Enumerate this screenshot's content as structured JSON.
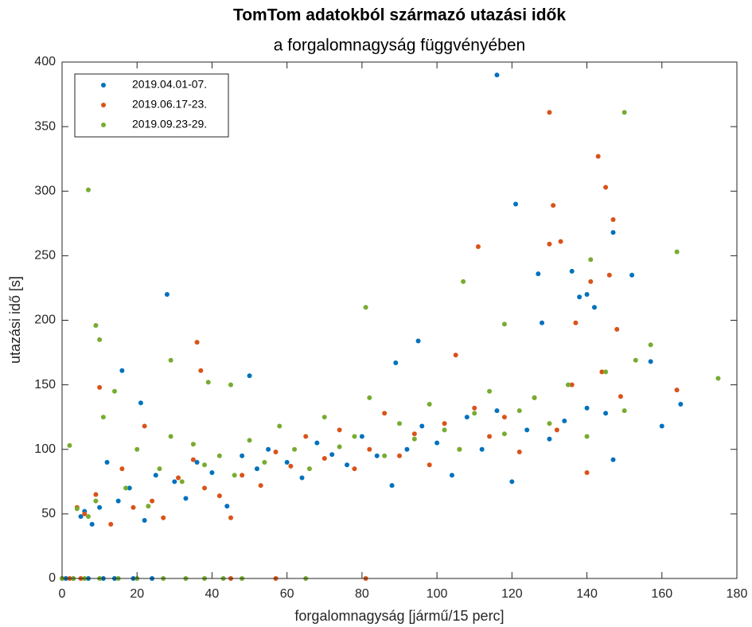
{
  "chart_data": {
    "type": "scatter",
    "title": "TomTom adatokból származó utazási idők",
    "subtitle": "a forgalomnagyság függvényében",
    "x_label": "forgalomnagyság [jármű/15 perc]",
    "y_label": "utazási idő [s]",
    "xlim": [
      0,
      180
    ],
    "xticks": [
      0,
      20,
      40,
      60,
      80,
      100,
      120,
      140,
      160,
      180
    ],
    "ylim": [
      0,
      400
    ],
    "yticks": [
      0,
      50,
      100,
      150,
      200,
      250,
      300,
      350,
      400
    ],
    "legend": "upper left",
    "series": [
      {
        "name": "2019.04.01-07.",
        "color": "#0072bd",
        "x": [
          116,
          121,
          28,
          147,
          152,
          127,
          140,
          142,
          138,
          16,
          21,
          50,
          160,
          165,
          157,
          128,
          95,
          89,
          136,
          147,
          5,
          6,
          8,
          10,
          12,
          15,
          18,
          22,
          25,
          30,
          33,
          36,
          40,
          44,
          48,
          52,
          55,
          60,
          64,
          68,
          72,
          76,
          80,
          84,
          88,
          92,
          96,
          100,
          104,
          108,
          112,
          116,
          120,
          124,
          130,
          134,
          140,
          145,
          0,
          1,
          3,
          7,
          11,
          14,
          19,
          24
        ],
        "values": [
          390,
          290,
          220,
          268,
          235,
          236,
          220,
          210,
          218,
          161,
          136,
          157,
          118,
          135,
          168,
          198,
          184,
          167,
          238,
          92,
          48,
          52,
          42,
          55,
          90,
          60,
          70,
          45,
          80,
          75,
          62,
          90,
          82,
          56,
          95,
          85,
          100,
          90,
          78,
          105,
          96,
          88,
          110,
          95,
          72,
          100,
          118,
          105,
          80,
          125,
          100,
          130,
          75,
          115,
          108,
          122,
          132,
          128,
          0,
          0,
          0,
          0,
          0,
          0,
          0,
          0
        ]
      },
      {
        "name": "2019.06.17-23.",
        "color": "#d95319",
        "x": [
          130,
          143,
          145,
          131,
          147,
          133,
          130,
          111,
          146,
          141,
          137,
          148,
          36,
          37,
          105,
          164,
          149,
          10,
          22,
          4,
          6,
          9,
          13,
          16,
          19,
          24,
          27,
          31,
          35,
          38,
          42,
          45,
          48,
          53,
          57,
          61,
          65,
          70,
          74,
          78,
          82,
          86,
          90,
          94,
          98,
          102,
          106,
          110,
          114,
          118,
          122,
          126,
          132,
          136,
          140,
          144,
          0,
          2,
          5,
          45,
          57,
          81
        ],
        "values": [
          361,
          327,
          303,
          289,
          278,
          261,
          259,
          257,
          235,
          230,
          198,
          193,
          183,
          161,
          173,
          146,
          141,
          148,
          118,
          55,
          50,
          65,
          42,
          85,
          55,
          60,
          47,
          78,
          92,
          70,
          64,
          47,
          80,
          72,
          98,
          87,
          110,
          93,
          115,
          85,
          100,
          128,
          95,
          112,
          88,
          120,
          100,
          132,
          110,
          125,
          98,
          140,
          115,
          150,
          82,
          160,
          0,
          0,
          0,
          0,
          0,
          0
        ]
      },
      {
        "name": "2019.09.23-29.",
        "color": "#77ac30",
        "x": [
          7,
          9,
          10,
          150,
          164,
          141,
          175,
          107,
          81,
          118,
          29,
          39,
          45,
          157,
          153,
          2,
          4,
          7,
          9,
          11,
          14,
          17,
          20,
          23,
          26,
          29,
          32,
          35,
          38,
          42,
          46,
          50,
          54,
          58,
          62,
          66,
          70,
          74,
          78,
          82,
          86,
          90,
          94,
          98,
          102,
          106,
          110,
          114,
          118,
          122,
          126,
          130,
          135,
          140,
          145,
          150,
          0,
          3,
          6,
          10,
          15,
          20,
          27,
          33,
          38,
          43,
          48,
          65
        ],
        "values": [
          301,
          196,
          185,
          361,
          253,
          247,
          155,
          230,
          210,
          197,
          169,
          152,
          150,
          181,
          169,
          103,
          54,
          48,
          60,
          125,
          145,
          70,
          100,
          56,
          85,
          110,
          75,
          104,
          88,
          95,
          80,
          107,
          90,
          118,
          100,
          85,
          125,
          102,
          110,
          140,
          95,
          120,
          108,
          135,
          115,
          100,
          128,
          145,
          112,
          130,
          140,
          120,
          150,
          110,
          160,
          130,
          0,
          0,
          0,
          0,
          0,
          0,
          0,
          0,
          0,
          0,
          0,
          0
        ]
      }
    ]
  }
}
